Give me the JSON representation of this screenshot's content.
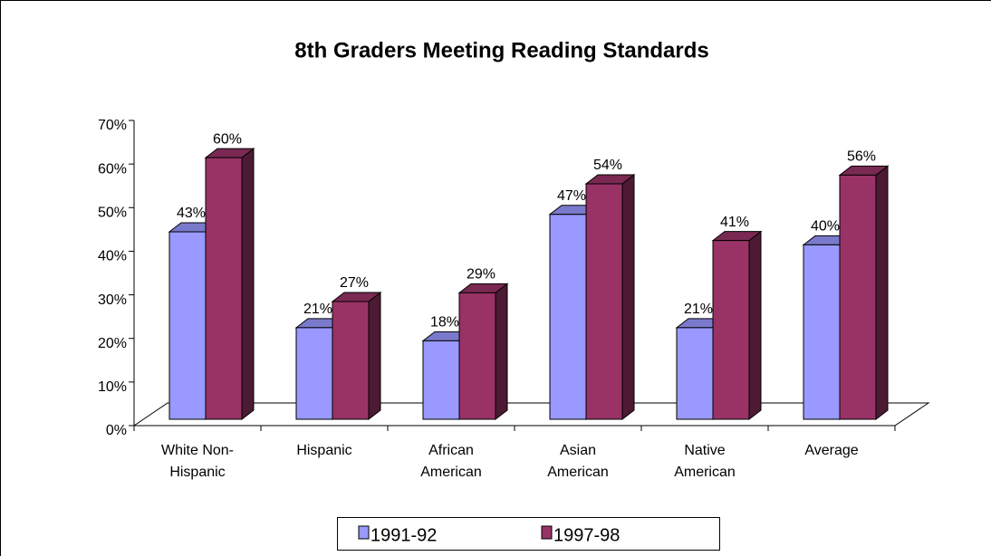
{
  "chart_data": {
    "type": "bar3d",
    "title": "8th Graders Meeting Reading Standards",
    "categories": [
      "White Non-\nHispanic",
      "Hispanic",
      "African\nAmerican",
      "Asian\nAmerican",
      "Native\nAmerican",
      "Average"
    ],
    "series": [
      {
        "name": "1991-92",
        "color": "#9999ff",
        "values": [
          43,
          21,
          18,
          47,
          21,
          40
        ],
        "value_labels": [
          "43%",
          "21%",
          "18%",
          "47%",
          "21%",
          "40%"
        ]
      },
      {
        "name": "1997-98",
        "color": "#993366",
        "values": [
          60,
          27,
          29,
          54,
          41,
          56
        ],
        "value_labels": [
          "60%",
          "27%",
          "29%",
          "54%",
          "41%",
          "56%"
        ]
      }
    ],
    "ylim": [
      0,
      70
    ],
    "yticks": [
      {
        "value": 0,
        "label": "0%"
      },
      {
        "value": 10,
        "label": "10%"
      },
      {
        "value": 20,
        "label": "20%"
      },
      {
        "value": 30,
        "label": "30%"
      },
      {
        "value": 40,
        "label": "40%"
      },
      {
        "value": 50,
        "label": "50%"
      },
      {
        "value": 60,
        "label": "60%"
      },
      {
        "value": 70,
        "label": "70%"
      }
    ],
    "legend": "bottom"
  }
}
